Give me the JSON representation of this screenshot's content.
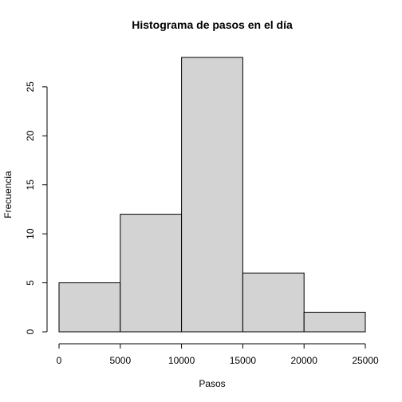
{
  "chart_data": {
    "type": "bar",
    "title": "Histograma de pasos en el día",
    "xlabel": "Pasos",
    "ylabel": "Frecuencia",
    "bins": [
      {
        "from": 0,
        "to": 5000,
        "count": 5
      },
      {
        "from": 5000,
        "to": 10000,
        "count": 12
      },
      {
        "from": 10000,
        "to": 15000,
        "count": 28
      },
      {
        "from": 15000,
        "to": 20000,
        "count": 6
      },
      {
        "from": 20000,
        "to": 25000,
        "count": 2
      }
    ],
    "x_ticks": [
      0,
      5000,
      10000,
      15000,
      20000,
      25000
    ],
    "y_ticks": [
      0,
      5,
      10,
      15,
      20,
      25
    ],
    "xlim": [
      0,
      25000
    ],
    "ylim": [
      0,
      28
    ],
    "bar_color": "#d3d3d3",
    "edge_color": "#000000",
    "grid": false
  }
}
